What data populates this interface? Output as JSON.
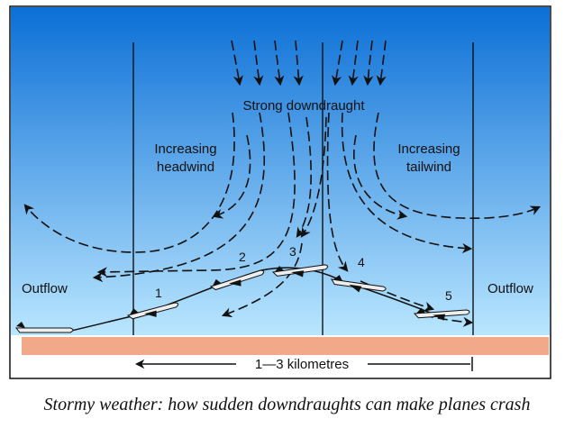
{
  "labels": {
    "strong_downdraught": "Strong downdraught",
    "increasing_headwind_l1": "Increasing",
    "increasing_headwind_l2": "headwind",
    "increasing_tailwind_l1": "Increasing",
    "increasing_tailwind_l2": "tailwind",
    "outflow_left": "Outflow",
    "outflow_right": "Outflow",
    "distance": "1—3 kilometres"
  },
  "plane_positions": [
    "1",
    "2",
    "3",
    "4",
    "5"
  ],
  "caption": "Stormy weather: how sudden downdraughts can make planes crash",
  "colors": {
    "sky_top": "#0b6fd6",
    "sky_bottom": "#b9e6ff",
    "ground": "#f2a98a",
    "lines": "#111111"
  }
}
